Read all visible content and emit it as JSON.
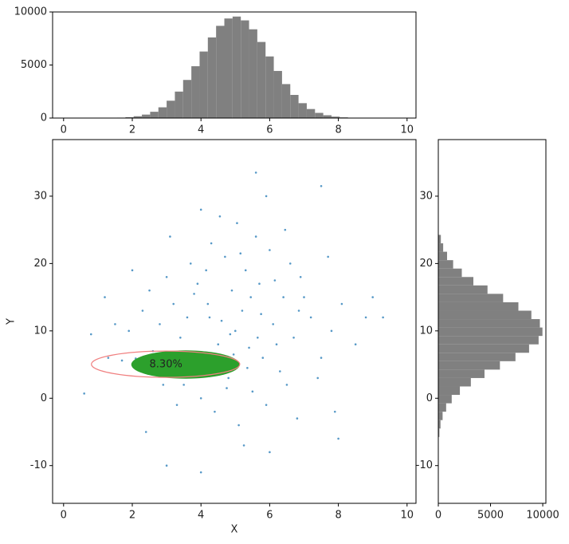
{
  "chart_data": [
    {
      "type": "scatter",
      "x_label": "X",
      "y_label": "Y",
      "color": "#1f77b4",
      "xlim": [
        -0.32,
        10.26
      ],
      "ylim": [
        -15.6,
        38.4
      ],
      "xticks": [
        0,
        2,
        4,
        6,
        8,
        10
      ],
      "yticks": [
        -10,
        0,
        10,
        20,
        30
      ],
      "x": [
        5.0,
        4.2,
        5.8,
        3.6,
        6.4,
        4.8,
        5.3,
        4.5,
        6.1,
        3.9,
        5.5,
        4.1,
        6.7,
        5.2,
        4.7,
        3.4,
        6.9,
        5.9,
        4.4,
        6.3,
        3.2,
        5.6,
        7.2,
        2.8,
        5.1,
        4.9,
        6.0,
        3.7,
        7.5,
        2.6,
        5.4,
        4.6,
        6.5,
        3.5,
        5.7,
        4.3,
        7.0,
        3.0,
        6.8,
        4.0,
        5.05,
        7.8,
        2.3,
        6.2,
        4.85,
        5.35,
        3.8,
        6.6,
        4.15,
        5.75,
        7.4,
        2.5,
        5.25,
        4.55,
        8.1,
        1.9,
        6.45,
        3.3,
        7.7,
        2.9,
        8.5,
        1.5,
        6.0,
        4.0,
        5.9,
        3.1,
        7.9,
        1.3,
        8.8,
        2.0,
        9.0,
        0.6,
        0.8,
        9.3,
        5.6,
        7.5,
        3.0,
        4.0,
        8.0,
        2.4,
        1.2,
        4.95,
        5.45,
        4.25,
        6.15,
        5.65,
        4.75,
        6.85,
        3.65,
        5.15,
        2.2,
        2.7,
        3.3,
        4.5,
        1.7,
        3.9,
        2.1,
        4.8
      ],
      "values": [
        10,
        14,
        6,
        12,
        15,
        3,
        19,
        8,
        11,
        17,
        1,
        5.5,
        9,
        13,
        21,
        9,
        18,
        -1,
        -2,
        4,
        14,
        24,
        12,
        11,
        -4,
        16,
        22,
        20,
        6,
        7,
        7.5,
        11.5,
        2,
        2,
        17,
        23,
        15,
        18,
        -3,
        0,
        26,
        10,
        13,
        8,
        9.5,
        4.5,
        15.5,
        20,
        19,
        12.5,
        3,
        16,
        -7,
        27,
        14,
        10,
        25,
        -1,
        21,
        2,
        8,
        11,
        -8,
        28,
        30,
        24,
        -2,
        6,
        12,
        19,
        15,
        0.7,
        9.5,
        12,
        33.5,
        31.5,
        -10,
        -11,
        -6,
        -5,
        15,
        6.5,
        15,
        12,
        17.5,
        9,
        1.5,
        13,
        6.5,
        21.5,
        4.5,
        5.5,
        4.0,
        4.8,
        5.6,
        3.6,
        5.9,
        5.5
      ],
      "highlight": {
        "center": [
          3.55,
          5.0
        ],
        "width": 3.16,
        "height": 4.2,
        "color": "#2ca02c"
      },
      "ellipse": {
        "center": [
          2.97,
          5.05
        ],
        "width": 4.32,
        "height": 3.9,
        "color": "#f08080"
      },
      "annotation": {
        "text": "8.30%",
        "x": 2.5,
        "y": 5
      }
    },
    {
      "type": "histogram",
      "orientation": "vertical",
      "color": "#808080",
      "xlim": [
        -0.32,
        10.26
      ],
      "ylim": [
        0,
        10000
      ],
      "xticks": [
        0,
        2,
        4,
        6,
        8,
        10
      ],
      "yticks": [
        0,
        5000,
        10000
      ],
      "bins": [
        0.6,
        0.84,
        1.08,
        1.32,
        1.56,
        1.8,
        2.04,
        2.28,
        2.52,
        2.76,
        3.0,
        3.24,
        3.48,
        3.72,
        3.96,
        4.2,
        4.44,
        4.68,
        4.92,
        5.16,
        5.4,
        5.64,
        5.88,
        6.12,
        6.36,
        6.6,
        6.84,
        7.08,
        7.32,
        7.56,
        7.8,
        8.04,
        8.28,
        8.52,
        8.76,
        9.0,
        9.24,
        9.48
      ],
      "values": [
        1,
        3,
        7,
        17,
        39,
        84,
        170,
        326,
        592,
        1012,
        1635,
        2495,
        3592,
        4885,
        6271,
        7600,
        8692,
        9385,
        9567,
        9207,
        8366,
        7173,
        5808,
        4440,
        3202,
        2181,
        1403,
        851,
        488,
        264,
        135,
        65,
        30,
        13,
        5,
        2,
        1
      ]
    },
    {
      "type": "histogram",
      "orientation": "horizontal",
      "color": "#808080",
      "xlim": [
        0,
        10300
      ],
      "ylim": [
        -15.6,
        38.4
      ],
      "xticks": [
        0,
        5000,
        10000
      ],
      "yticks": [
        -10,
        0,
        10,
        20,
        30
      ],
      "bins": [
        -5.75,
        -4.5,
        -3.25,
        -2.0,
        -0.75,
        0.5,
        1.75,
        3.0,
        4.25,
        5.5,
        6.75,
        8.0,
        9.25,
        10.5,
        11.75,
        13.0,
        14.25,
        15.5,
        16.75,
        18.0,
        19.25,
        20.5,
        21.75,
        23.0,
        24.25
      ],
      "values": [
        103,
        212,
        412,
        750,
        1284,
        2065,
        3117,
        4423,
        5899,
        7387,
        8691,
        9604,
        9971,
        9725,
        8910,
        7667,
        6206,
        4711,
        3357,
        2250,
        1420,
        840,
        466,
        244
      ]
    }
  ]
}
